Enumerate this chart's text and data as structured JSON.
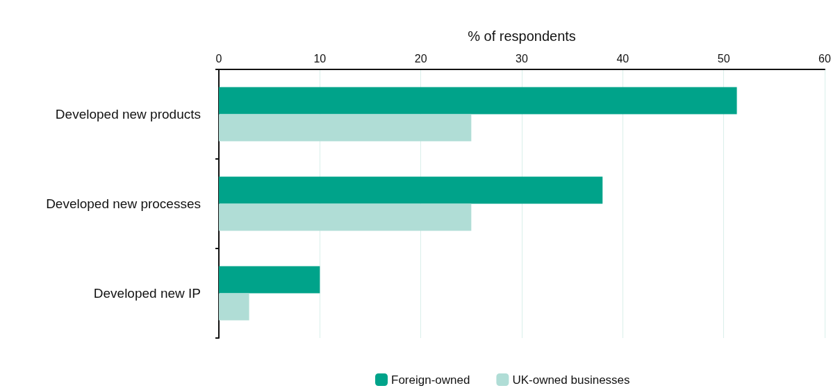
{
  "chart_data": {
    "type": "bar",
    "orientation": "horizontal",
    "xlabel": "% of respondents",
    "categories": [
      "Developed new products",
      "Developed new processes",
      "Developed new IP"
    ],
    "series": [
      {
        "name": "Foreign-owned",
        "color": "#00a38a",
        "values": [
          51.3,
          38,
          10
        ]
      },
      {
        "name": "UK-owned businesses",
        "color": "#b0ddd6",
        "values": [
          25,
          25,
          3
        ]
      }
    ],
    "xlim": [
      0,
      60
    ],
    "xticks": [
      0,
      10,
      20,
      30,
      40,
      50,
      60
    ],
    "grid": "x",
    "legend": "bottom"
  }
}
